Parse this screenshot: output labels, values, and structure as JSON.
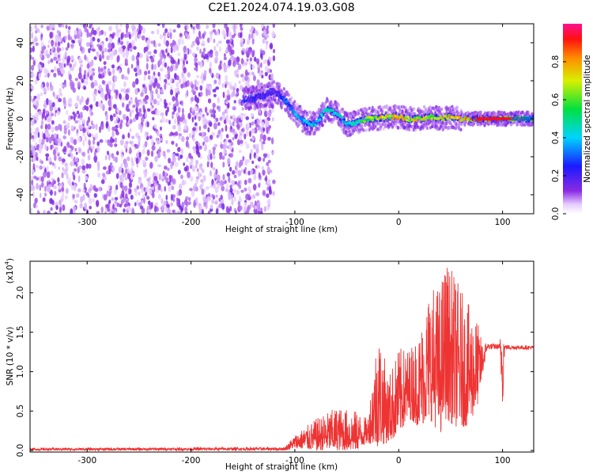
{
  "title": "C2E1.2024.074.19.03.G08",
  "chart_data": [
    {
      "type": "heatmap",
      "xlabel": "Height of straight line (km)",
      "ylabel": "Frequency (Hz)",
      "xlim": [
        -355,
        130
      ],
      "ylim": [
        -50,
        50
      ],
      "xticks": [
        -300,
        -200,
        -100,
        0,
        100
      ],
      "yticks": [
        -40,
        -20,
        0,
        20,
        40
      ],
      "colorbar": {
        "label": "Normalized spectral amplitude",
        "range": [
          0,
          1
        ],
        "ticks": [
          0.0,
          0.2,
          0.4,
          0.6,
          0.8
        ],
        "colormap": "rainbow (white-purple-blue-cyan-green-yellow-red-magenta)"
      },
      "ridge": {
        "description": "frequency track of the strongest spectral amplitude",
        "points": [
          {
            "x": -150,
            "y": 10,
            "amp": 0.1
          },
          {
            "x": -140,
            "y": 11,
            "amp": 0.2
          },
          {
            "x": -130,
            "y": 12,
            "amp": 0.2
          },
          {
            "x": -120,
            "y": 15,
            "amp": 0.15
          },
          {
            "x": -110,
            "y": 10,
            "amp": 0.3
          },
          {
            "x": -100,
            "y": 3,
            "amp": 0.35
          },
          {
            "x": -90,
            "y": -2,
            "amp": 0.4
          },
          {
            "x": -80,
            "y": -3,
            "amp": 0.4
          },
          {
            "x": -70,
            "y": 5,
            "amp": 0.45
          },
          {
            "x": -60,
            "y": 3,
            "amp": 0.45
          },
          {
            "x": -50,
            "y": -3,
            "amp": 0.4
          },
          {
            "x": -40,
            "y": -2,
            "amp": 0.5
          },
          {
            "x": -30,
            "y": 0,
            "amp": 0.6
          },
          {
            "x": -20,
            "y": 0,
            "amp": 0.7
          },
          {
            "x": -10,
            "y": 1,
            "amp": 0.7
          },
          {
            "x": 0,
            "y": 1,
            "amp": 0.75
          },
          {
            "x": 10,
            "y": 0,
            "amp": 0.7
          },
          {
            "x": 20,
            "y": 0,
            "amp": 0.7
          },
          {
            "x": 30,
            "y": 1,
            "amp": 0.7
          },
          {
            "x": 40,
            "y": 0,
            "amp": 0.7
          },
          {
            "x": 50,
            "y": 1,
            "amp": 0.75
          },
          {
            "x": 60,
            "y": 0,
            "amp": 0.7
          },
          {
            "x": 70,
            "y": 0,
            "amp": 0.8
          },
          {
            "x": 80,
            "y": 0,
            "amp": 0.9
          },
          {
            "x": 90,
            "y": 0,
            "amp": 0.95
          },
          {
            "x": 100,
            "y": 0,
            "amp": 0.9
          },
          {
            "x": 110,
            "y": 0,
            "amp": 0.7
          },
          {
            "x": 120,
            "y": 0,
            "amp": 0.6
          },
          {
            "x": 130,
            "y": 0,
            "amp": 0.55
          }
        ],
        "noise_region_x": [
          -355,
          -120
        ]
      }
    },
    {
      "type": "line",
      "xlabel": "Height of straight line (km)",
      "ylabel": "SNR (10 * v/v)",
      "yscale_label": "(x10",
      "yscale_exp": "4",
      "xlim": [
        -355,
        130
      ],
      "ylim": [
        -0.02,
        2.4
      ],
      "xticks": [
        -300,
        -200,
        -100,
        0,
        100
      ],
      "yticks": [
        0.0,
        0.5,
        1.0,
        1.5,
        2.0
      ],
      "color": "#ee3333",
      "envelope": [
        {
          "x": -355,
          "low": 0.0,
          "high": 0.03
        },
        {
          "x": -110,
          "low": 0.0,
          "high": 0.04
        },
        {
          "x": -100,
          "low": 0.03,
          "high": 0.2
        },
        {
          "x": -80,
          "low": 0.0,
          "high": 0.4
        },
        {
          "x": -60,
          "low": 0.0,
          "high": 0.55
        },
        {
          "x": -40,
          "low": 0.0,
          "high": 0.5
        },
        {
          "x": -30,
          "low": 0.1,
          "high": 0.4
        },
        {
          "x": -20,
          "low": 0.05,
          "high": 1.6
        },
        {
          "x": -10,
          "low": 0.1,
          "high": 0.95
        },
        {
          "x": 0,
          "low": 0.2,
          "high": 1.3
        },
        {
          "x": 10,
          "low": 0.4,
          "high": 1.3
        },
        {
          "x": 20,
          "low": 0.3,
          "high": 1.5
        },
        {
          "x": 30,
          "low": 0.4,
          "high": 2.1
        },
        {
          "x": 40,
          "low": 0.2,
          "high": 2.1
        },
        {
          "x": 45,
          "low": 0.4,
          "high": 2.45
        },
        {
          "x": 55,
          "low": 0.3,
          "high": 2.2
        },
        {
          "x": 65,
          "low": 0.3,
          "high": 1.9
        },
        {
          "x": 75,
          "low": 0.5,
          "high": 1.7
        },
        {
          "x": 80,
          "low": 0.9,
          "high": 1.4
        },
        {
          "x": 85,
          "low": 1.28,
          "high": 1.36
        },
        {
          "x": 97,
          "low": 1.28,
          "high": 1.35
        },
        {
          "x": 100,
          "low": 0.5,
          "high": 1.7
        },
        {
          "x": 102,
          "low": 1.28,
          "high": 1.34
        },
        {
          "x": 130,
          "low": 1.28,
          "high": 1.33
        }
      ]
    }
  ]
}
